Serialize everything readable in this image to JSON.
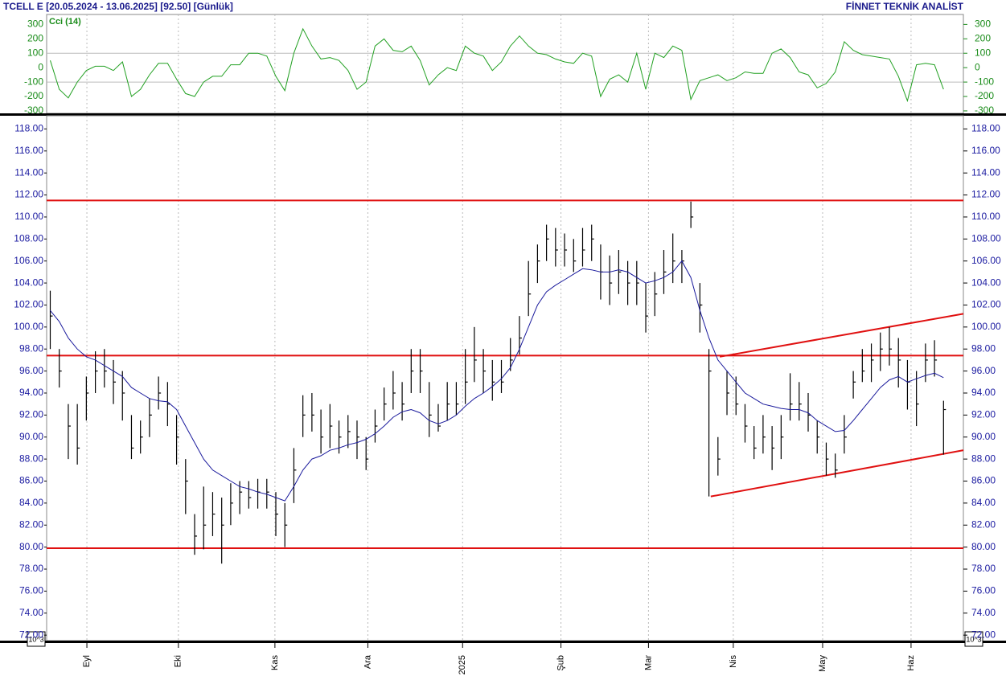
{
  "header": {
    "title": "TCELL E  [20.05.2024 - 13.06.2025]  [92.50]  [Günlük]",
    "source": "FİNNET TEKNİK ANALİST",
    "scale_left": "10^3",
    "scale_right": "10^3"
  },
  "chart_data": [
    {
      "type": "line",
      "title": "Cci (14)",
      "color": "#22a022",
      "x": [
        0,
        1,
        2,
        3,
        4,
        5,
        6,
        7,
        8,
        9,
        10,
        11,
        12,
        13,
        14,
        15,
        16,
        17,
        18,
        19,
        20,
        21,
        22,
        23,
        24,
        25,
        26,
        27,
        28,
        29,
        30,
        31,
        32,
        33,
        34,
        35,
        36,
        37,
        38,
        39,
        40,
        41,
        42,
        43,
        44,
        45,
        46,
        47,
        48,
        49,
        50,
        51,
        52,
        53,
        54,
        55,
        56,
        57,
        58,
        59,
        60,
        61,
        62,
        63,
        64,
        65,
        66,
        67,
        68,
        69,
        70,
        71,
        72,
        73,
        74,
        75,
        76,
        77,
        78,
        79,
        80,
        81,
        82,
        83,
        84,
        85,
        86,
        87,
        88,
        89,
        90,
        91,
        92,
        93,
        94,
        95,
        96,
        97,
        98,
        99
      ],
      "values": [
        50,
        -150,
        -210,
        -100,
        -20,
        10,
        10,
        -20,
        40,
        -200,
        -150,
        -50,
        30,
        30,
        -80,
        -180,
        -200,
        -100,
        -60,
        -60,
        20,
        20,
        100,
        100,
        80,
        -60,
        -160,
        100,
        270,
        150,
        60,
        70,
        50,
        -20,
        -150,
        -100,
        150,
        200,
        120,
        110,
        150,
        50,
        -120,
        -50,
        0,
        -20,
        150,
        100,
        80,
        -20,
        40,
        150,
        220,
        150,
        100,
        90,
        60,
        40,
        30,
        100,
        80,
        -200,
        -80,
        -50,
        -100,
        100,
        -150,
        100,
        70,
        150,
        120,
        -220,
        -90,
        -70,
        -50,
        -90,
        -70,
        -30,
        -40,
        -40,
        100,
        130,
        70,
        -30,
        -50,
        -140,
        -110,
        -30,
        180,
        120,
        90,
        80,
        70,
        60,
        -60,
        -230,
        20,
        30,
        20,
        -150
      ],
      "xlim": [
        -0.4,
        101.2
      ],
      "ylim": [
        -317,
        369
      ],
      "yticks": [
        300,
        200,
        100,
        0,
        -100,
        -200,
        -300
      ],
      "grid_values": [
        100,
        -100
      ],
      "grid": true
    },
    {
      "type": "ohlc",
      "color": "#000000",
      "x": [
        0,
        1,
        2,
        3,
        4,
        5,
        6,
        7,
        8,
        9,
        10,
        11,
        12,
        13,
        14,
        15,
        16,
        17,
        18,
        19,
        20,
        21,
        22,
        23,
        24,
        25,
        26,
        27,
        28,
        29,
        30,
        31,
        32,
        33,
        34,
        35,
        36,
        37,
        38,
        39,
        40,
        41,
        42,
        43,
        44,
        45,
        46,
        47,
        48,
        49,
        50,
        51,
        52,
        53,
        54,
        55,
        56,
        57,
        58,
        59,
        60,
        61,
        62,
        63,
        64,
        65,
        66,
        67,
        68,
        69,
        70,
        71,
        72,
        73,
        74,
        75,
        76,
        77,
        78,
        79,
        80,
        81,
        82,
        83,
        84,
        85,
        86,
        87,
        88,
        89,
        90,
        91,
        92,
        93,
        94,
        95,
        96,
        97,
        98,
        99
      ],
      "high": [
        103.3,
        98,
        93,
        93,
        95.5,
        97.8,
        98,
        97,
        96,
        92,
        91.5,
        93.5,
        95.5,
        95,
        92,
        88,
        83,
        85.5,
        85,
        84.5,
        85.8,
        86,
        86,
        86.2,
        86.2,
        85,
        84,
        89,
        93.8,
        94,
        92.5,
        93,
        91.5,
        92,
        91.5,
        90,
        92.5,
        94.5,
        96,
        95,
        98,
        98,
        95,
        93,
        95,
        95,
        98,
        100,
        98,
        97,
        97,
        99,
        101,
        106,
        107.5,
        109.3,
        109,
        108.5,
        108,
        109,
        109.3,
        107.5,
        106.5,
        107,
        106,
        106,
        104,
        105,
        107,
        108.5,
        107,
        111.4,
        104,
        98,
        90,
        96,
        95.5,
        93,
        91,
        92,
        91,
        92,
        95.8,
        95,
        94,
        91.5,
        89.5,
        88.5,
        92,
        96,
        98,
        98.5,
        99.5,
        100,
        99,
        97,
        96,
        98.5,
        98.8,
        93.3
      ],
      "low": [
        98,
        94.5,
        88,
        87.5,
        91.5,
        94,
        94.5,
        93,
        91.5,
        88,
        88.5,
        90,
        92.5,
        91,
        87.5,
        83,
        79.3,
        79.8,
        81,
        78.5,
        82,
        83,
        83.5,
        83.5,
        83.5,
        81,
        80,
        84,
        90,
        90.5,
        88.5,
        89,
        88.5,
        89,
        88,
        87,
        89.5,
        91.5,
        92.5,
        91.5,
        94,
        94,
        90,
        90.5,
        91.5,
        92,
        93,
        95,
        94,
        93.3,
        94,
        96,
        97.5,
        101,
        104,
        106,
        105.5,
        105.5,
        105,
        105.5,
        106,
        102.5,
        102,
        103,
        102,
        102,
        99.5,
        101,
        103,
        104,
        104,
        109,
        99.5,
        84.6,
        86.5,
        92,
        92,
        89.5,
        88,
        88.5,
        87,
        88,
        91.5,
        91.5,
        90.5,
        88.5,
        86.5,
        86.3,
        88.5,
        93.5,
        95,
        95,
        96,
        96.5,
        94.5,
        92.5,
        91,
        95,
        95.5,
        88.4
      ],
      "close": [
        101,
        96,
        91,
        89,
        94,
        96,
        96,
        95,
        94,
        89,
        90,
        92,
        94,
        93,
        90,
        86,
        81,
        82,
        83,
        82,
        84,
        85,
        84.5,
        85,
        85,
        83,
        82,
        87,
        92,
        92,
        90,
        91,
        90,
        90.5,
        90,
        88,
        91,
        93,
        94,
        93,
        96,
        96,
        92,
        91,
        93,
        93,
        95,
        97,
        96,
        95,
        95,
        97,
        99,
        103,
        106,
        108,
        107,
        107,
        106,
        107,
        108,
        105,
        104,
        105,
        104,
        104,
        101,
        103,
        105,
        106,
        106,
        110,
        102,
        96,
        88,
        94,
        93,
        91,
        89,
        90,
        89,
        90,
        93,
        93,
        92,
        90,
        88,
        87,
        90,
        95,
        96,
        97,
        98,
        98,
        97,
        95,
        93,
        97,
        97,
        92.5
      ],
      "moving_average": {
        "color": "#1a1a9c",
        "values": [
          101.5,
          100.5,
          99,
          98,
          97.3,
          97,
          96.5,
          96,
          95.5,
          94.5,
          94,
          93.5,
          93.3,
          93.2,
          92.5,
          91,
          89.5,
          88,
          87,
          86.5,
          86,
          85.5,
          85.3,
          85,
          84.8,
          84.5,
          84.2,
          85.5,
          87,
          88,
          88.3,
          88.8,
          89,
          89.3,
          89.5,
          89.8,
          90.3,
          91,
          91.8,
          92.3,
          92.5,
          92.2,
          91.5,
          91.2,
          91.5,
          92,
          92.8,
          93.5,
          94,
          94.6,
          95.3,
          96.3,
          98,
          100,
          102,
          103.2,
          103.8,
          104.3,
          104.8,
          105.3,
          105.2,
          105,
          105,
          105.2,
          105,
          104.5,
          104,
          104.2,
          104.5,
          105,
          106,
          104.5,
          101.5,
          99,
          97,
          96,
          95,
          94,
          93.5,
          93,
          92.8,
          92.6,
          92.5,
          92.5,
          92.2,
          91.5,
          91,
          90.5,
          90.6,
          91.5,
          92.5,
          93.5,
          94.5,
          95.2,
          95.5,
          95,
          95.3,
          95.6,
          95.8,
          95.4
        ]
      },
      "levels": {
        "color": "#e01010",
        "values": [
          111.5,
          97.4,
          79.9
        ]
      },
      "trendlines": {
        "color": "#e01010",
        "lines": [
          {
            "x": [
              73.2,
              101.2
            ],
            "y": [
              84.6,
              88.8
            ]
          },
          {
            "x": [
              74.2,
              101.2
            ],
            "y": [
              97.3,
              101.2
            ]
          }
        ]
      },
      "xlim": [
        -0.4,
        101.2
      ],
      "ylim": [
        71.5,
        119.2
      ],
      "xticks": [
        {
          "value": 4.06,
          "label": "Eyl"
        },
        {
          "value": 14.2,
          "label": "Eki"
        },
        {
          "value": 24.9,
          "label": "Kas"
        },
        {
          "value": 35.2,
          "label": "Ara"
        },
        {
          "value": 45.7,
          "label": "2025"
        },
        {
          "value": 56.6,
          "label": "Şub"
        },
        {
          "value": 66.3,
          "label": "Mar"
        },
        {
          "value": 75.7,
          "label": "Nis"
        },
        {
          "value": 85.6,
          "label": "May"
        },
        {
          "value": 95.4,
          "label": "Haz"
        }
      ],
      "yticks": [
        {
          "value": 118,
          "label": "118.00"
        },
        {
          "value": 116,
          "label": "116.00"
        },
        {
          "value": 114,
          "label": "114.00"
        },
        {
          "value": 112,
          "label": "112.00"
        },
        {
          "value": 110,
          "label": "110.00"
        },
        {
          "value": 108,
          "label": "108.00"
        },
        {
          "value": 106,
          "label": "106.00"
        },
        {
          "value": 104,
          "label": "104.00"
        },
        {
          "value": 102,
          "label": "102.00"
        },
        {
          "value": 100,
          "label": "100.00"
        },
        {
          "value": 98,
          "label": "98.00"
        },
        {
          "value": 96,
          "label": "96.00"
        },
        {
          "value": 94,
          "label": "94.00"
        },
        {
          "value": 92,
          "label": "92.00"
        },
        {
          "value": 90,
          "label": "90.00"
        },
        {
          "value": 88,
          "label": "88.00"
        },
        {
          "value": 86,
          "label": "86.00"
        },
        {
          "value": 84,
          "label": "84.00"
        },
        {
          "value": 82,
          "label": "82.00"
        },
        {
          "value": 80,
          "label": "80.00"
        },
        {
          "value": 78,
          "label": "78.00"
        },
        {
          "value": 76,
          "label": "76.00"
        },
        {
          "value": 74,
          "label": "74.00"
        },
        {
          "value": 72,
          "label": "72.00"
        }
      ],
      "grid": true
    }
  ]
}
